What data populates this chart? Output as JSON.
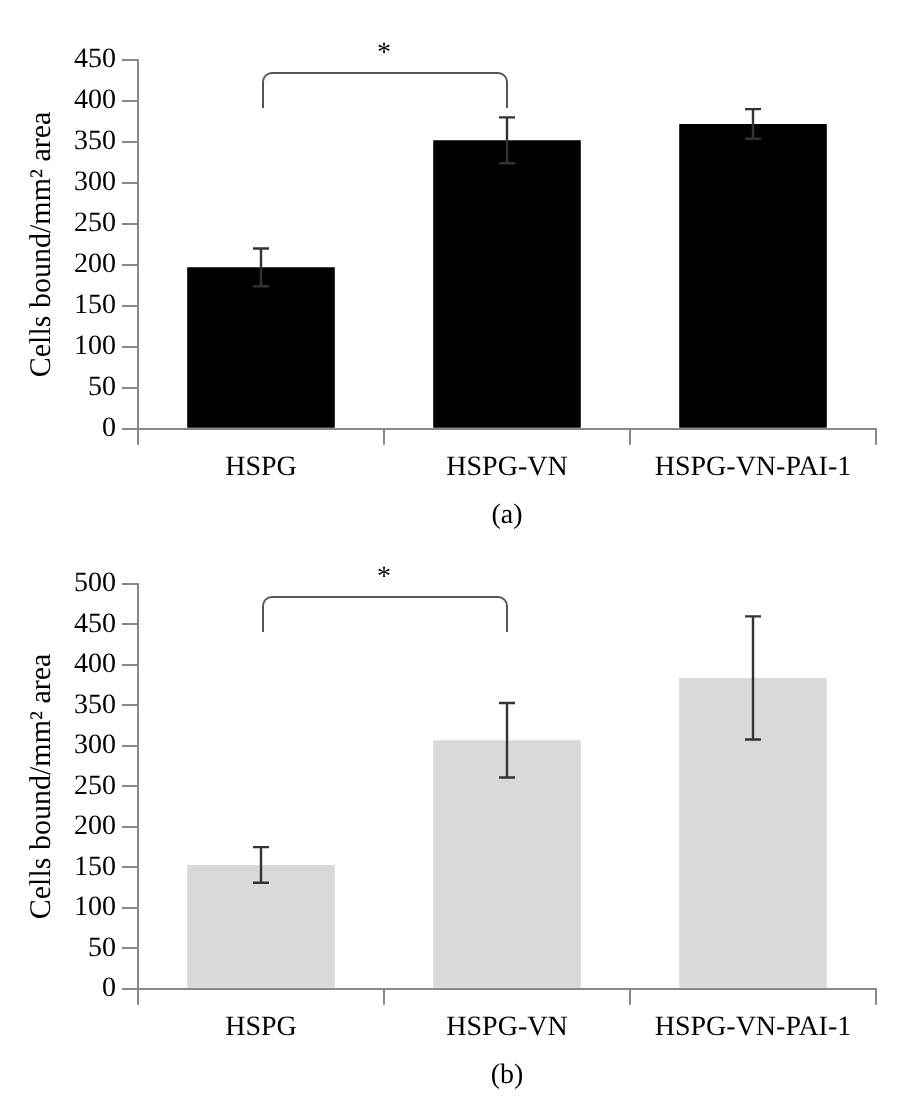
{
  "chart_data": [
    {
      "type": "bar",
      "xlabel": "(a)",
      "ylabel": "Cells bound/mm² area",
      "categories": [
        "HSPG",
        "HSPG-VN",
        "HSPG-VN-PAI-1"
      ],
      "values": [
        197,
        352,
        372
      ],
      "errors": [
        23,
        28,
        18
      ],
      "color": "#000000",
      "ylim": [
        0,
        450
      ],
      "yticks": [
        0,
        50,
        100,
        150,
        200,
        250,
        300,
        350,
        400,
        450
      ],
      "annotations": [
        "*"
      ]
    },
    {
      "type": "bar",
      "xlabel": "(b)",
      "ylabel": "Cells bound/mm² area",
      "categories": [
        "HSPG",
        "HSPG-VN",
        "HSPG-VN-PAI-1"
      ],
      "values": [
        153,
        307,
        384
      ],
      "errors": [
        22,
        46,
        76
      ],
      "color": "#d9d9d9",
      "ylim": [
        0,
        500
      ],
      "yticks": [
        0,
        50,
        100,
        150,
        200,
        250,
        300,
        350,
        400,
        450,
        500
      ],
      "annotations": [
        "*"
      ]
    }
  ]
}
